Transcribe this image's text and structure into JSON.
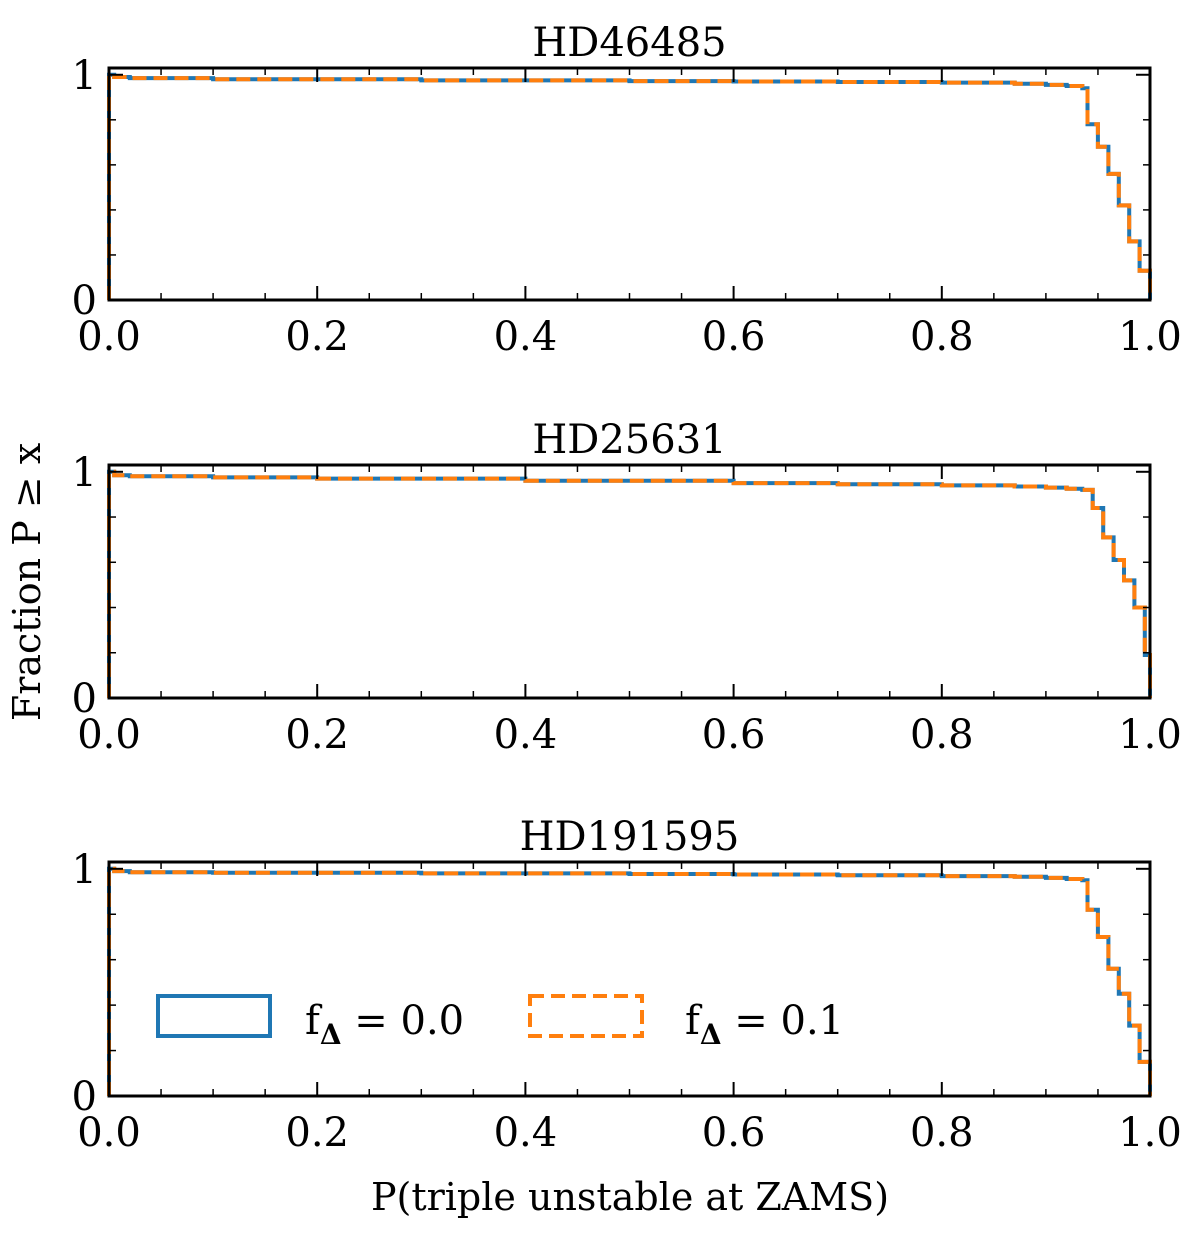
{
  "figure": {
    "ylabel": "Fraction P ≥ x",
    "xlabel": "P(triple unstable at ZAMS)"
  },
  "colors": {
    "series_0": "#1f77b4",
    "series_1": "#ff7f0e"
  },
  "legend": {
    "placement": "lower-left of bottom panel",
    "entries": [
      {
        "label_prefix": "f",
        "label_sub": "Δ",
        "label_suffix": " = 0.0",
        "style": "solid"
      },
      {
        "label_prefix": "f",
        "label_sub": "Δ",
        "label_suffix": " = 0.1",
        "style": "dashed"
      }
    ]
  },
  "chart_data": [
    {
      "type": "line",
      "title": "HD46485",
      "xlabel": "P(triple unstable at ZAMS)",
      "ylabel": "Fraction P ≥ x",
      "xlim": [
        0,
        1
      ],
      "ylim": [
        0,
        1.03
      ],
      "xticks": [
        "0.0",
        "0.2",
        "0.4",
        "0.6",
        "0.8",
        "1.0"
      ],
      "yticks": [
        "0",
        "1"
      ],
      "series": [
        {
          "name": "f_Δ = 0.0",
          "x": [
            0,
            0.005,
            0.02,
            0.1,
            0.3,
            0.5,
            0.6,
            0.7,
            0.8,
            0.87,
            0.9,
            0.92,
            0.935,
            0.94,
            0.95,
            0.96,
            0.97,
            0.98,
            0.99,
            1.0
          ],
          "y": [
            1.0,
            0.99,
            0.985,
            0.98,
            0.975,
            0.972,
            0.97,
            0.968,
            0.965,
            0.96,
            0.955,
            0.95,
            0.94,
            0.78,
            0.68,
            0.56,
            0.42,
            0.26,
            0.13,
            0.07
          ]
        },
        {
          "name": "f_Δ = 0.1",
          "x": [
            0,
            0.005,
            0.02,
            0.1,
            0.3,
            0.5,
            0.6,
            0.7,
            0.8,
            0.87,
            0.9,
            0.92,
            0.935,
            0.94,
            0.95,
            0.96,
            0.97,
            0.98,
            0.99,
            1.0
          ],
          "y": [
            1.0,
            0.99,
            0.985,
            0.98,
            0.975,
            0.972,
            0.97,
            0.968,
            0.965,
            0.96,
            0.955,
            0.95,
            0.94,
            0.78,
            0.68,
            0.56,
            0.42,
            0.26,
            0.13,
            0.07
          ]
        }
      ]
    },
    {
      "type": "line",
      "title": "HD25631",
      "xlabel": "P(triple unstable at ZAMS)",
      "ylabel": "Fraction P ≥ x",
      "xlim": [
        0,
        1
      ],
      "ylim": [
        0,
        1.03
      ],
      "xticks": [
        "0.0",
        "0.2",
        "0.4",
        "0.6",
        "0.8",
        "1.0"
      ],
      "yticks": [
        "0",
        "1"
      ],
      "series": [
        {
          "name": "f_Δ = 0.0",
          "x": [
            0,
            0.005,
            0.02,
            0.1,
            0.2,
            0.4,
            0.6,
            0.7,
            0.8,
            0.87,
            0.9,
            0.92,
            0.935,
            0.945,
            0.955,
            0.965,
            0.975,
            0.985,
            0.995,
            1.0
          ],
          "y": [
            1.0,
            0.985,
            0.98,
            0.975,
            0.97,
            0.96,
            0.95,
            0.945,
            0.94,
            0.935,
            0.93,
            0.925,
            0.92,
            0.84,
            0.71,
            0.61,
            0.52,
            0.4,
            0.19,
            0.1
          ]
        },
        {
          "name": "f_Δ = 0.1",
          "x": [
            0,
            0.005,
            0.02,
            0.1,
            0.2,
            0.4,
            0.6,
            0.7,
            0.8,
            0.87,
            0.9,
            0.92,
            0.935,
            0.945,
            0.955,
            0.965,
            0.975,
            0.985,
            0.995,
            1.0
          ],
          "y": [
            1.0,
            0.985,
            0.98,
            0.975,
            0.97,
            0.96,
            0.95,
            0.945,
            0.94,
            0.935,
            0.93,
            0.925,
            0.92,
            0.84,
            0.71,
            0.61,
            0.52,
            0.4,
            0.19,
            0.1
          ]
        }
      ]
    },
    {
      "type": "line",
      "title": "HD191595",
      "xlabel": "P(triple unstable at ZAMS)",
      "ylabel": "Fraction P ≥ x",
      "xlim": [
        0,
        1
      ],
      "ylim": [
        0,
        1.03
      ],
      "xticks": [
        "0.0",
        "0.2",
        "0.4",
        "0.6",
        "0.8",
        "1.0"
      ],
      "yticks": [
        "0",
        "1"
      ],
      "series": [
        {
          "name": "f_Δ = 0.0",
          "x": [
            0,
            0.005,
            0.02,
            0.1,
            0.3,
            0.5,
            0.6,
            0.7,
            0.8,
            0.87,
            0.9,
            0.92,
            0.935,
            0.94,
            0.95,
            0.96,
            0.97,
            0.98,
            0.99,
            1.0
          ],
          "y": [
            1.0,
            0.99,
            0.985,
            0.983,
            0.98,
            0.977,
            0.975,
            0.972,
            0.968,
            0.965,
            0.96,
            0.955,
            0.95,
            0.82,
            0.7,
            0.56,
            0.45,
            0.31,
            0.15,
            0.08
          ]
        },
        {
          "name": "f_Δ = 0.1",
          "x": [
            0,
            0.005,
            0.02,
            0.1,
            0.3,
            0.5,
            0.6,
            0.7,
            0.8,
            0.87,
            0.9,
            0.92,
            0.935,
            0.94,
            0.95,
            0.96,
            0.97,
            0.98,
            0.99,
            1.0
          ],
          "y": [
            1.0,
            0.99,
            0.985,
            0.983,
            0.98,
            0.977,
            0.975,
            0.972,
            0.968,
            0.965,
            0.96,
            0.955,
            0.95,
            0.82,
            0.7,
            0.56,
            0.45,
            0.31,
            0.15,
            0.08
          ]
        }
      ]
    }
  ]
}
